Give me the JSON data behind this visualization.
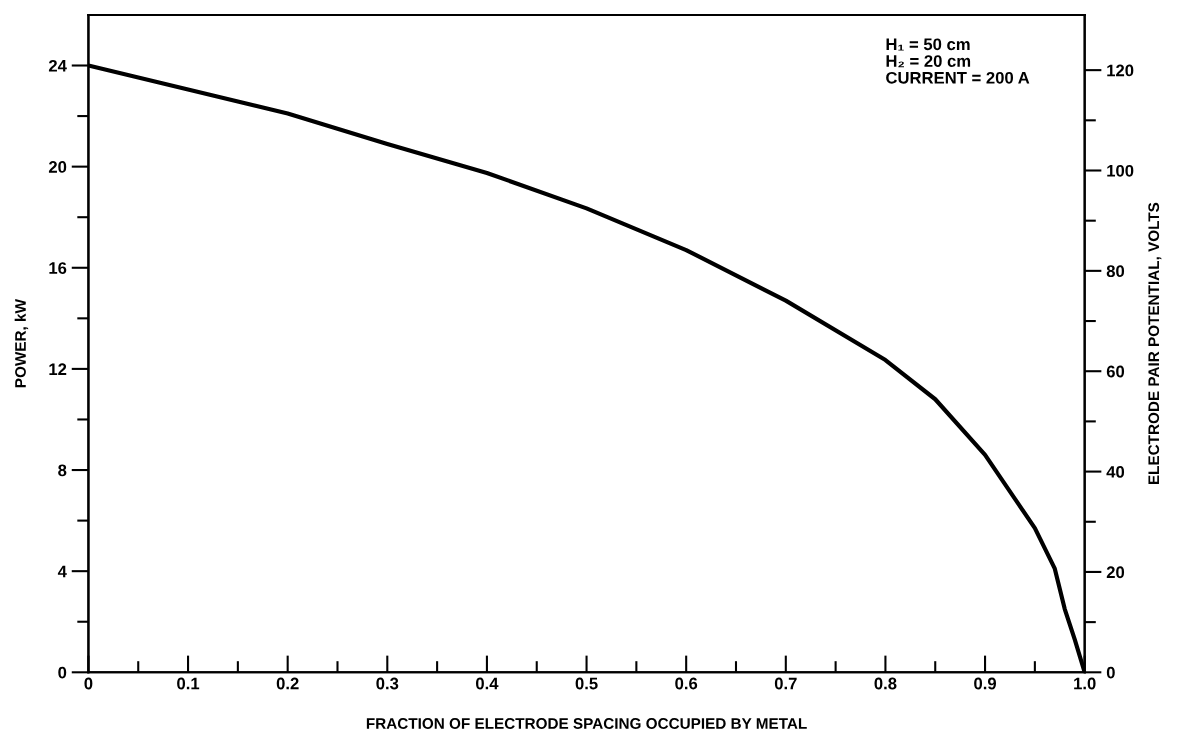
{
  "chart_data": {
    "type": "line",
    "xlabel": "FRACTION OF ELECTRODE SPACING OCCUPIED BY METAL",
    "ylabel": "POWER, kW",
    "y2label": "ELECTRODE PAIR POTENTIAL, VOLTS",
    "annotations": [
      "H₁ = 50 cm\nH₂ = 20 cm\nCURRENT = 200 A"
    ],
    "x": [
      0,
      0.1,
      0.2,
      0.3,
      0.4,
      0.5,
      0.6,
      0.7,
      0.8,
      0.85,
      0.9,
      0.95,
      0.97,
      0.98,
      0.99,
      1.0
    ],
    "series": [
      {
        "color": "#000000",
        "values": [
          24,
          23.05,
          22.1,
          20.9,
          19.75,
          18.35,
          16.7,
          14.7,
          12.35,
          10.8,
          8.6,
          5.7,
          4.1,
          2.5,
          1.3,
          0
        ]
      }
    ],
    "xlim": [
      0,
      1.0
    ],
    "xticks": [
      0,
      {
        "value": 0.05,
        "label": null
      },
      {
        "value": 0.1,
        "label": "0.1"
      },
      {
        "value": 0.15,
        "label": null
      },
      {
        "value": 0.2,
        "label": "0.2"
      },
      {
        "value": 0.25,
        "label": null
      },
      {
        "value": 0.3,
        "label": "0.3"
      },
      {
        "value": 0.35,
        "label": null
      },
      {
        "value": 0.4,
        "label": "0.4"
      },
      {
        "value": 0.45,
        "label": null
      },
      {
        "value": 0.5,
        "label": "0.5"
      },
      {
        "value": 0.55,
        "label": null
      },
      {
        "value": 0.6,
        "label": "0.6"
      },
      {
        "value": 0.65,
        "label": null
      },
      {
        "value": 0.7,
        "label": "0.7"
      },
      {
        "value": 0.75,
        "label": null
      },
      {
        "value": 0.8,
        "label": "0.8"
      },
      {
        "value": 0.85,
        "label": null
      },
      {
        "value": 0.9,
        "label": "0.9"
      },
      {
        "value": 0.95,
        "label": null
      },
      {
        "value": 1.0,
        "label": "1.0"
      }
    ],
    "ylim": [
      0,
      26
    ],
    "yticks": [
      0,
      {
        "value": 2,
        "label": null
      },
      4,
      {
        "value": 6,
        "label": null
      },
      8,
      {
        "value": 10,
        "label": null
      },
      12,
      {
        "value": 14,
        "label": null
      },
      16,
      {
        "value": 18,
        "label": null
      },
      20,
      {
        "value": 22,
        "label": null
      },
      24
    ],
    "y2lim": [
      0,
      131
    ],
    "y2ticks": [
      0,
      {
        "value": 10,
        "label": null
      },
      20,
      {
        "value": 30,
        "label": null
      },
      40,
      {
        "value": 50,
        "label": null
      },
      60,
      {
        "value": 70,
        "label": null
      },
      80,
      {
        "value": 90,
        "label": null
      },
      100,
      {
        "value": 110,
        "label": null
      },
      120
    ],
    "grid": false,
    "legend": false,
    "marker": "none",
    "line_style": "solid"
  }
}
